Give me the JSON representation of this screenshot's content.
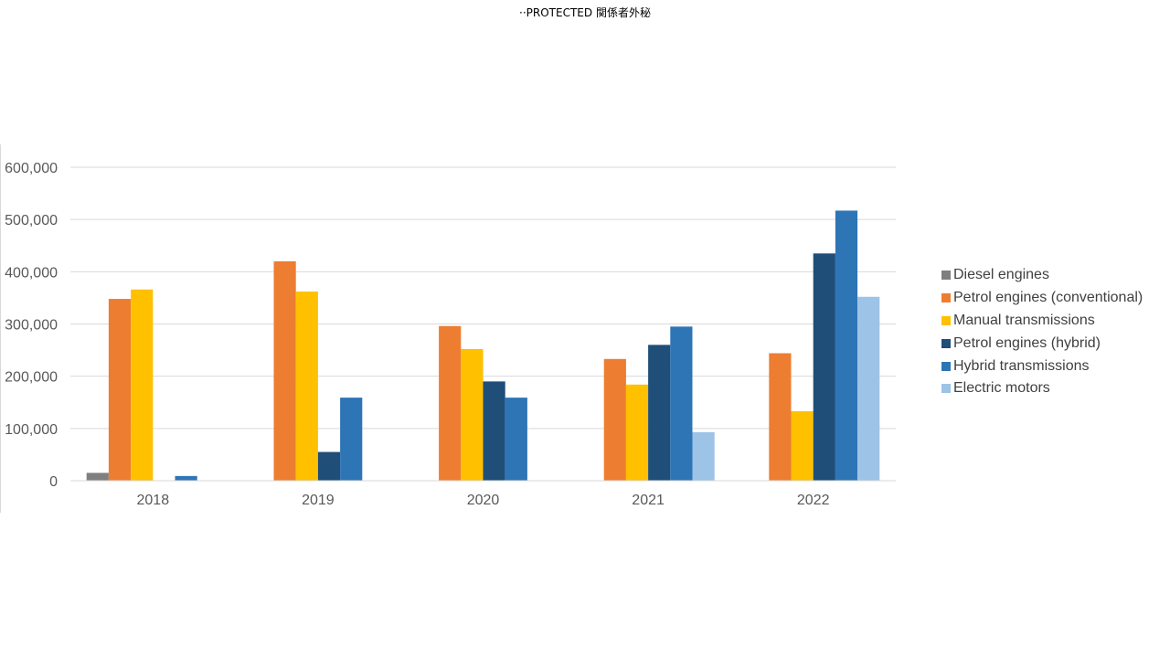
{
  "header": {
    "classification": "··PROTECTED 関係者外秘"
  },
  "chart_data": {
    "type": "bar",
    "title": "",
    "xlabel": "",
    "ylabel": "",
    "categories": [
      "2018",
      "2019",
      "2020",
      "2021",
      "2022"
    ],
    "ylim": [
      0,
      600000
    ],
    "yticks": [
      0,
      100000,
      200000,
      300000,
      400000,
      500000,
      600000
    ],
    "ytick_labels": [
      "0",
      "100,000",
      "200,000",
      "300,000",
      "400,000",
      "500,000",
      "600,000"
    ],
    "grid": true,
    "legend_position": "right",
    "series": [
      {
        "name": "Diesel engines",
        "color": "#7f7f7f",
        "values": [
          15000,
          0,
          0,
          0,
          0
        ]
      },
      {
        "name": "Petrol engines (conventional)",
        "color": "#ed7d31",
        "values": [
          348000,
          420000,
          296000,
          233000,
          244000
        ]
      },
      {
        "name": "Manual transmissions",
        "color": "#ffc000",
        "values": [
          366000,
          362000,
          252000,
          184000,
          133000
        ]
      },
      {
        "name": "Petrol engines (hybrid)",
        "color": "#1f4e79",
        "values": [
          0,
          55000,
          190000,
          260000,
          435000
        ]
      },
      {
        "name": "Hybrid transmissions",
        "color": "#2e75b6",
        "values": [
          9000,
          159000,
          159000,
          295000,
          517000
        ]
      },
      {
        "name": "Electric motors",
        "color": "#9dc3e6",
        "values": [
          0,
          0,
          0,
          93000,
          352000
        ]
      }
    ]
  }
}
